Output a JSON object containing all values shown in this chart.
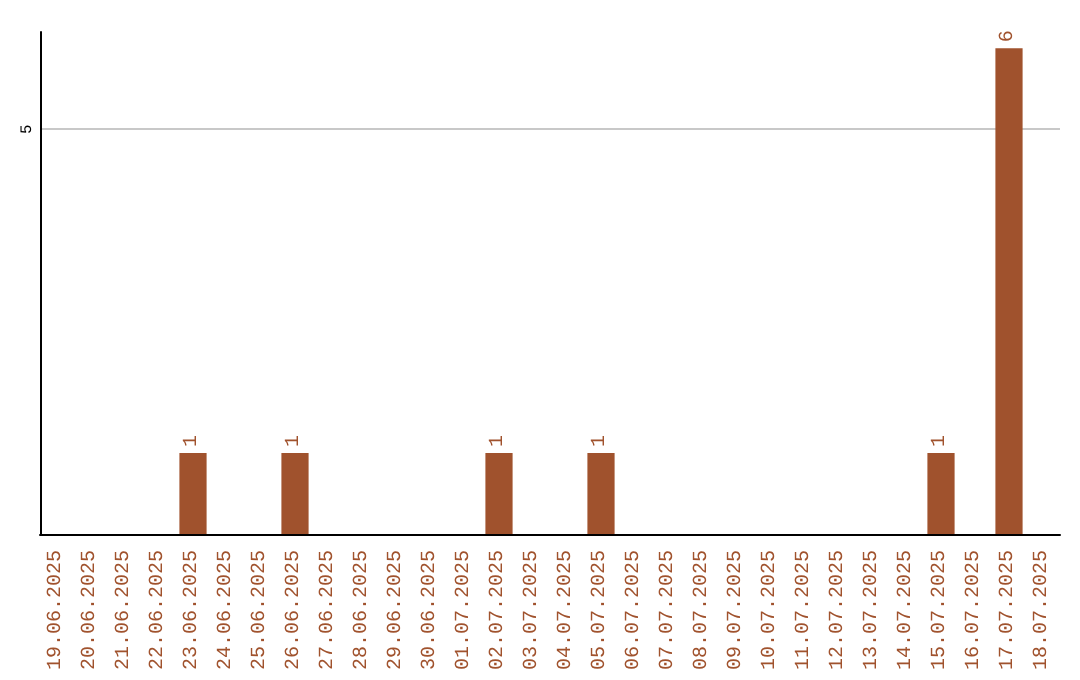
{
  "chart_data": {
    "type": "bar",
    "categories": [
      "19.06.2025",
      "20.06.2025",
      "21.06.2025",
      "22.06.2025",
      "23.06.2025",
      "24.06.2025",
      "25.06.2025",
      "26.06.2025",
      "27.06.2025",
      "28.06.2025",
      "29.06.2025",
      "30.06.2025",
      "01.07.2025",
      "02.07.2025",
      "03.07.2025",
      "04.07.2025",
      "05.07.2025",
      "06.07.2025",
      "07.07.2025",
      "08.07.2025",
      "09.07.2025",
      "10.07.2025",
      "11.07.2025",
      "12.07.2025",
      "13.07.2025",
      "14.07.2025",
      "15.07.2025",
      "16.07.2025",
      "17.07.2025",
      "18.07.2025"
    ],
    "values": [
      0,
      0,
      0,
      0,
      1,
      0,
      0,
      1,
      0,
      0,
      0,
      0,
      0,
      1,
      0,
      0,
      1,
      0,
      0,
      0,
      0,
      0,
      0,
      0,
      0,
      0,
      1,
      0,
      6,
      0
    ],
    "value_labels": [
      null,
      null,
      null,
      null,
      "1",
      null,
      null,
      "1",
      null,
      null,
      null,
      null,
      null,
      "1",
      null,
      null,
      "1",
      null,
      null,
      null,
      null,
      null,
      null,
      null,
      null,
      null,
      "1",
      null,
      "6",
      null
    ],
    "color": "#a0522d",
    "ylim": [
      0,
      6.2
    ],
    "yticks": [
      5
    ],
    "grid": "y"
  }
}
